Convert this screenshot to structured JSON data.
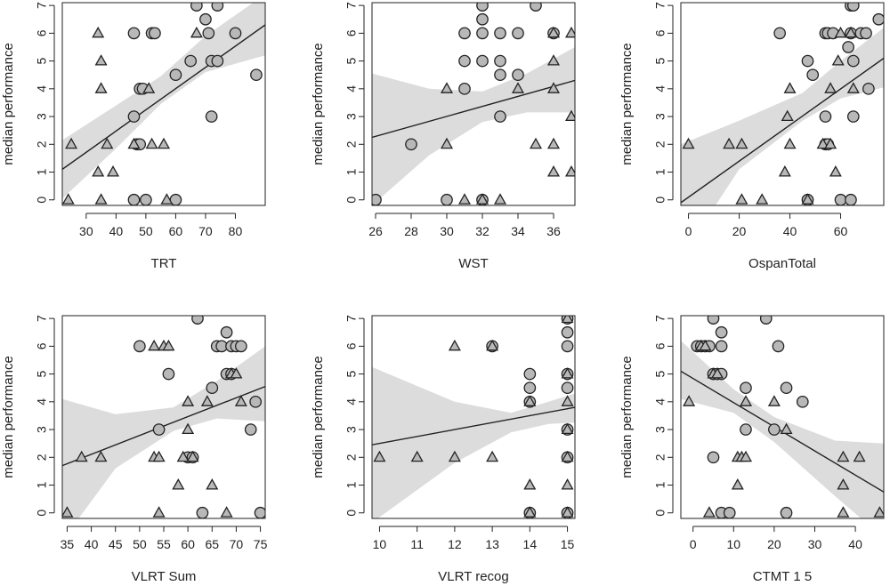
{
  "colors": {
    "band": "#dcdcdc",
    "point_fill": "#b8b8b8",
    "ink": "#222222"
  },
  "chart_data": [
    {
      "type": "scatter",
      "id": "trt",
      "xlabel": "TRT",
      "ylabel": "median performance",
      "xlim": [
        22,
        90
      ],
      "ylim": [
        -0.2,
        7.1
      ],
      "xticks": [
        30,
        40,
        50,
        60,
        70,
        80
      ],
      "yticks": [
        0,
        1,
        2,
        3,
        4,
        5,
        6,
        7
      ],
      "fit": {
        "x0": 22,
        "y0": 1.1,
        "x1": 90,
        "y1": 6.3
      },
      "band": [
        [
          22,
          0.05,
          2.15
        ],
        [
          40,
          1.85,
          3.4
        ],
        [
          55,
          3.45,
          4.45
        ],
        [
          70,
          4.6,
          5.9
        ],
        [
          90,
          5.2,
          7.4
        ]
      ],
      "circles": [
        [
          46,
          6
        ],
        [
          52,
          6
        ],
        [
          53,
          6
        ],
        [
          67,
          7
        ],
        [
          70,
          6.5
        ],
        [
          74,
          7
        ],
        [
          71,
          6
        ],
        [
          80,
          6
        ],
        [
          65,
          5
        ],
        [
          72,
          5
        ],
        [
          74,
          5
        ],
        [
          60,
          4.5
        ],
        [
          87,
          4.5
        ],
        [
          48,
          4
        ],
        [
          49,
          4
        ],
        [
          46,
          3
        ],
        [
          72,
          3
        ],
        [
          47,
          2
        ],
        [
          48,
          2
        ],
        [
          46,
          0
        ],
        [
          50,
          0
        ],
        [
          60,
          0
        ]
      ],
      "triangles": [
        [
          34,
          6
        ],
        [
          67,
          6
        ],
        [
          35,
          5
        ],
        [
          35,
          4
        ],
        [
          51,
          4
        ],
        [
          25,
          2
        ],
        [
          37,
          2
        ],
        [
          46,
          2
        ],
        [
          52,
          2
        ],
        [
          56,
          2
        ],
        [
          34,
          1
        ],
        [
          39,
          1
        ],
        [
          24,
          0
        ],
        [
          35,
          0
        ],
        [
          57,
          0
        ]
      ]
    },
    {
      "type": "scatter",
      "id": "wst",
      "xlabel": "WST",
      "ylabel": "median performance",
      "xlim": [
        25.8,
        37.2
      ],
      "ylim": [
        -0.2,
        7.1
      ],
      "xticks": [
        26,
        28,
        30,
        32,
        34,
        36
      ],
      "yticks": [
        0,
        1,
        2,
        3,
        4,
        5,
        6,
        7
      ],
      "fit": {
        "x0": 25.8,
        "y0": 2.25,
        "x1": 37.2,
        "y1": 4.3
      },
      "band": [
        [
          25.8,
          -0.2,
          4.55
        ],
        [
          29,
          1.6,
          4.0
        ],
        [
          32,
          2.8,
          3.9
        ],
        [
          34.5,
          3.15,
          4.55
        ],
        [
          37.2,
          3.15,
          5.5
        ]
      ],
      "circles": [
        [
          32,
          7
        ],
        [
          35,
          7
        ],
        [
          32,
          6.5
        ],
        [
          31,
          6
        ],
        [
          32,
          6
        ],
        [
          33,
          6
        ],
        [
          34,
          6
        ],
        [
          36,
          6
        ],
        [
          31,
          5
        ],
        [
          32,
          5
        ],
        [
          33,
          5
        ],
        [
          33,
          4.5
        ],
        [
          34,
          4.5
        ],
        [
          31,
          4
        ],
        [
          33,
          3
        ],
        [
          28,
          2
        ],
        [
          26,
          0
        ],
        [
          30,
          0
        ],
        [
          32,
          0
        ]
      ],
      "triangles": [
        [
          36,
          6
        ],
        [
          37,
          6
        ],
        [
          36,
          5
        ],
        [
          30,
          4
        ],
        [
          34,
          4
        ],
        [
          36,
          4
        ],
        [
          37,
          3
        ],
        [
          30,
          2
        ],
        [
          35,
          2
        ],
        [
          36,
          2
        ],
        [
          36,
          1
        ],
        [
          37,
          1
        ],
        [
          31,
          0
        ],
        [
          32,
          0
        ],
        [
          33,
          0
        ]
      ]
    },
    {
      "type": "scatter",
      "id": "ospan",
      "xlabel": "OspanTotal",
      "ylabel": "median performance",
      "xlim": [
        -3,
        77
      ],
      "ylim": [
        -0.2,
        7.1
      ],
      "xticks": [
        0,
        20,
        40,
        60
      ],
      "yticks": [
        0,
        1,
        2,
        3,
        4,
        5,
        6,
        7
      ],
      "fit": {
        "x0": -3,
        "y0": -0.1,
        "x1": 77,
        "y1": 5.1
      },
      "band": [
        [
          -3,
          -2.1,
          2.0
        ],
        [
          20,
          1.1,
          2.85
        ],
        [
          45,
          2.85,
          3.85
        ],
        [
          60,
          3.65,
          5.0
        ],
        [
          77,
          4.05,
          6.2
        ]
      ],
      "circles": [
        [
          64,
          7
        ],
        [
          65,
          7
        ],
        [
          75,
          6.5
        ],
        [
          36,
          6
        ],
        [
          54,
          6
        ],
        [
          55,
          6
        ],
        [
          57,
          6
        ],
        [
          64,
          6
        ],
        [
          68,
          6
        ],
        [
          70,
          6
        ],
        [
          63,
          5.5
        ],
        [
          47,
          5
        ],
        [
          65,
          5
        ],
        [
          49,
          4.5
        ],
        [
          71,
          4
        ],
        [
          54,
          3
        ],
        [
          65,
          3
        ],
        [
          54,
          2
        ],
        [
          55,
          2
        ],
        [
          47,
          0
        ],
        [
          60,
          0
        ],
        [
          64,
          0
        ]
      ],
      "triangles": [
        [
          60,
          6
        ],
        [
          64,
          6
        ],
        [
          59,
          5
        ],
        [
          40,
          4
        ],
        [
          56,
          4
        ],
        [
          65,
          4
        ],
        [
          39,
          3
        ],
        [
          0,
          2
        ],
        [
          16,
          2
        ],
        [
          21,
          2
        ],
        [
          40,
          2
        ],
        [
          53,
          2
        ],
        [
          56,
          2
        ],
        [
          38,
          1
        ],
        [
          58,
          1
        ],
        [
          21,
          0
        ],
        [
          29,
          0
        ],
        [
          47,
          0
        ]
      ]
    },
    {
      "type": "scatter",
      "id": "vlrt-sum",
      "xlabel": "VLRT Sum",
      "ylabel": "median performance",
      "xlim": [
        34,
        76
      ],
      "ylim": [
        -0.2,
        7.1
      ],
      "xticks": [
        35,
        40,
        45,
        50,
        55,
        60,
        65,
        70,
        75
      ],
      "yticks": [
        0,
        1,
        2,
        3,
        4,
        5,
        6,
        7
      ],
      "fit": {
        "x0": 34,
        "y0": 1.7,
        "x1": 76,
        "y1": 4.55
      },
      "band": [
        [
          34,
          -1.0,
          4.1
        ],
        [
          45,
          1.6,
          3.55
        ],
        [
          57,
          2.95,
          3.8
        ],
        [
          66,
          3.4,
          4.75
        ],
        [
          76,
          3.3,
          6.0
        ]
      ],
      "circles": [
        [
          62,
          7
        ],
        [
          68,
          6.5
        ],
        [
          50,
          6
        ],
        [
          66,
          6
        ],
        [
          67,
          6
        ],
        [
          69,
          6
        ],
        [
          70,
          6
        ],
        [
          71,
          6
        ],
        [
          56,
          5
        ],
        [
          68,
          5
        ],
        [
          69,
          5
        ],
        [
          65,
          4.5
        ],
        [
          74,
          4
        ],
        [
          54,
          3
        ],
        [
          73,
          3
        ],
        [
          60,
          2
        ],
        [
          61,
          2
        ],
        [
          63,
          0
        ],
        [
          75,
          0
        ]
      ],
      "triangles": [
        [
          53,
          6
        ],
        [
          55,
          6
        ],
        [
          56,
          6
        ],
        [
          69,
          5
        ],
        [
          70,
          5
        ],
        [
          60,
          4
        ],
        [
          64,
          4
        ],
        [
          71,
          4
        ],
        [
          60,
          3
        ],
        [
          38,
          2
        ],
        [
          42,
          2
        ],
        [
          53,
          2
        ],
        [
          54,
          2
        ],
        [
          59,
          2
        ],
        [
          61,
          2
        ],
        [
          58,
          1
        ],
        [
          65,
          1
        ],
        [
          35,
          0
        ],
        [
          54,
          0
        ],
        [
          68,
          0
        ]
      ]
    },
    {
      "type": "scatter",
      "id": "vlrt-recog",
      "xlabel": "VLRT recog",
      "ylabel": "median performance",
      "xlim": [
        9.8,
        15.2
      ],
      "ylim": [
        -0.2,
        7.1
      ],
      "xticks": [
        10,
        11,
        12,
        13,
        14,
        15
      ],
      "yticks": [
        0,
        1,
        2,
        3,
        4,
        5,
        6,
        7
      ],
      "fit": {
        "x0": 9.8,
        "y0": 2.45,
        "x1": 15.2,
        "y1": 3.8
      },
      "band": [
        [
          9.8,
          -0.35,
          5.25
        ],
        [
          12,
          1.8,
          4.0
        ],
        [
          13.5,
          2.9,
          3.6
        ],
        [
          14.5,
          3.2,
          4.0
        ],
        [
          15.2,
          3.25,
          4.3
        ]
      ],
      "circles": [
        [
          15,
          7
        ],
        [
          15,
          6.5
        ],
        [
          13,
          6
        ],
        [
          15,
          6
        ],
        [
          14,
          5
        ],
        [
          15,
          5
        ],
        [
          14,
          4.5
        ],
        [
          15,
          4.5
        ],
        [
          14,
          4
        ],
        [
          15,
          3
        ],
        [
          15,
          2
        ],
        [
          14,
          0
        ],
        [
          15,
          0
        ]
      ],
      "triangles": [
        [
          15,
          7
        ],
        [
          12,
          6
        ],
        [
          13,
          6
        ],
        [
          15,
          5
        ],
        [
          14,
          4
        ],
        [
          15,
          4
        ],
        [
          15,
          3
        ],
        [
          10,
          2
        ],
        [
          11,
          2
        ],
        [
          12,
          2
        ],
        [
          13,
          2
        ],
        [
          15,
          2
        ],
        [
          14,
          1
        ],
        [
          15,
          1
        ],
        [
          14,
          0
        ],
        [
          15,
          0
        ]
      ]
    },
    {
      "type": "scatter",
      "id": "ctmt",
      "xlabel": "CTMT 1 5",
      "ylabel": "median performance",
      "xlim": [
        -3,
        47
      ],
      "ylim": [
        -0.2,
        7.1
      ],
      "xticks": [
        0,
        10,
        20,
        30,
        40
      ],
      "yticks": [
        0,
        1,
        2,
        3,
        4,
        5,
        6,
        7
      ],
      "fit": {
        "x0": -3,
        "y0": 5.1,
        "x1": 47,
        "y1": 0.75
      },
      "band": [
        [
          -3,
          4.1,
          6.2
        ],
        [
          10,
          3.6,
          4.45
        ],
        [
          20,
          2.55,
          3.45
        ],
        [
          35,
          0.6,
          2.6
        ],
        [
          47,
          -0.9,
          2.5
        ]
      ],
      "circles": [
        [
          5,
          7
        ],
        [
          18,
          7
        ],
        [
          7,
          6.5
        ],
        [
          1,
          6
        ],
        [
          2,
          6
        ],
        [
          3,
          6
        ],
        [
          4,
          6
        ],
        [
          7,
          6
        ],
        [
          21,
          6
        ],
        [
          5,
          5
        ],
        [
          6,
          5
        ],
        [
          7,
          5
        ],
        [
          13,
          4.5
        ],
        [
          23,
          4.5
        ],
        [
          27,
          4
        ],
        [
          13,
          3
        ],
        [
          20,
          3
        ],
        [
          5,
          2
        ],
        [
          7,
          0
        ],
        [
          9,
          0
        ],
        [
          23,
          0
        ]
      ],
      "triangles": [
        [
          2,
          6
        ],
        [
          3,
          6
        ],
        [
          5,
          5
        ],
        [
          6,
          5
        ],
        [
          -1,
          4
        ],
        [
          13,
          4
        ],
        [
          20,
          4
        ],
        [
          23,
          3
        ],
        [
          11,
          2
        ],
        [
          12,
          2
        ],
        [
          13,
          2
        ],
        [
          37,
          2
        ],
        [
          41,
          2
        ],
        [
          11,
          1
        ],
        [
          37,
          1
        ],
        [
          4,
          0
        ],
        [
          37,
          0
        ],
        [
          46,
          0
        ]
      ]
    }
  ]
}
